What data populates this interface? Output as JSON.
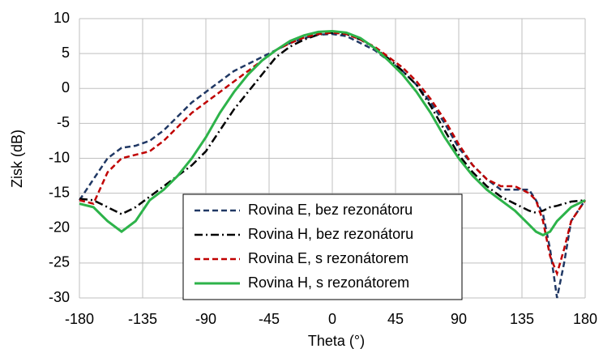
{
  "chart_data": {
    "type": "line",
    "xlabel": "Theta (°)",
    "ylabel": "Zisk (dB)",
    "x": [
      -180,
      -170,
      -160,
      -150,
      -140,
      -130,
      -120,
      -110,
      -100,
      -90,
      -80,
      -70,
      -60,
      -50,
      -40,
      -30,
      -20,
      -10,
      0,
      10,
      20,
      30,
      40,
      50,
      60,
      70,
      80,
      90,
      100,
      110,
      120,
      130,
      140,
      145,
      150,
      155,
      160,
      165,
      170,
      180
    ],
    "series": [
      {
        "name": "Rovina E, bez rezonátoru",
        "color": "#203864",
        "dash": "dashed",
        "values": [
          -16,
          -13,
          -10,
          -8.5,
          -8.2,
          -7.5,
          -6,
          -4,
          -2,
          -0.5,
          1,
          2.5,
          3.5,
          4.5,
          5.5,
          6.5,
          7.2,
          7.7,
          7.8,
          7.5,
          6.5,
          5.5,
          4,
          2.5,
          0.5,
          -2,
          -5,
          -8.5,
          -11,
          -13,
          -14.5,
          -14.5,
          -14.5,
          -16,
          -18,
          -23,
          -30,
          -25,
          -19,
          -16
        ]
      },
      {
        "name": "Rovina H, bez rezonátoru",
        "color": "#000000",
        "dash": "dashdot",
        "values": [
          -15.8,
          -16,
          -17,
          -18,
          -17,
          -15.5,
          -14,
          -12.5,
          -11,
          -9,
          -6,
          -3,
          -0.5,
          2,
          4.5,
          6,
          7,
          7.7,
          8,
          7.8,
          7,
          5.8,
          4.3,
          2.5,
          0.5,
          -2.5,
          -6,
          -9.5,
          -12,
          -14,
          -15.5,
          -16.5,
          -17.5,
          -17.8,
          -17.5,
          -17,
          -16.8,
          -16.5,
          -16.2,
          -16
        ]
      },
      {
        "name": "Rovina E, s rezonátorem",
        "color": "#c00000",
        "dash": "dashed",
        "values": [
          -16,
          -16.5,
          -12,
          -10,
          -9.5,
          -9,
          -7.5,
          -5.5,
          -3.5,
          -2,
          -0.5,
          1,
          2.5,
          4,
          5.5,
          6.5,
          7.3,
          7.8,
          8,
          7.8,
          7,
          6,
          4.5,
          3,
          1,
          -1.5,
          -4.5,
          -8,
          -11,
          -13,
          -14,
          -14,
          -15,
          -16,
          -19,
          -24,
          -26.5,
          -23,
          -19,
          -16
        ]
      },
      {
        "name": "Rovina H, s rezonátorem",
        "color": "#2db34a",
        "dash": "solid",
        "values": [
          -16.5,
          -17,
          -19,
          -20.5,
          -19,
          -16,
          -14.5,
          -12.5,
          -10,
          -7,
          -3.5,
          -0.5,
          2,
          4,
          5.5,
          6.8,
          7.6,
          8.1,
          8.2,
          8,
          7.2,
          5.8,
          4,
          2,
          -0.5,
          -3.5,
          -7,
          -10,
          -12.5,
          -14.5,
          -16,
          -17.5,
          -19.5,
          -20.5,
          -21,
          -20.5,
          -19,
          -18,
          -17,
          -16
        ]
      }
    ],
    "xlim": [
      -180,
      180
    ],
    "xticks": [
      -180,
      -135,
      -90,
      -45,
      0,
      45,
      90,
      135,
      180
    ],
    "ylim": [
      -30,
      10
    ],
    "yticks": [
      -30,
      -25,
      -20,
      -15,
      -10,
      -5,
      0,
      5,
      10
    ],
    "grid": true,
    "legend": "lower center"
  }
}
